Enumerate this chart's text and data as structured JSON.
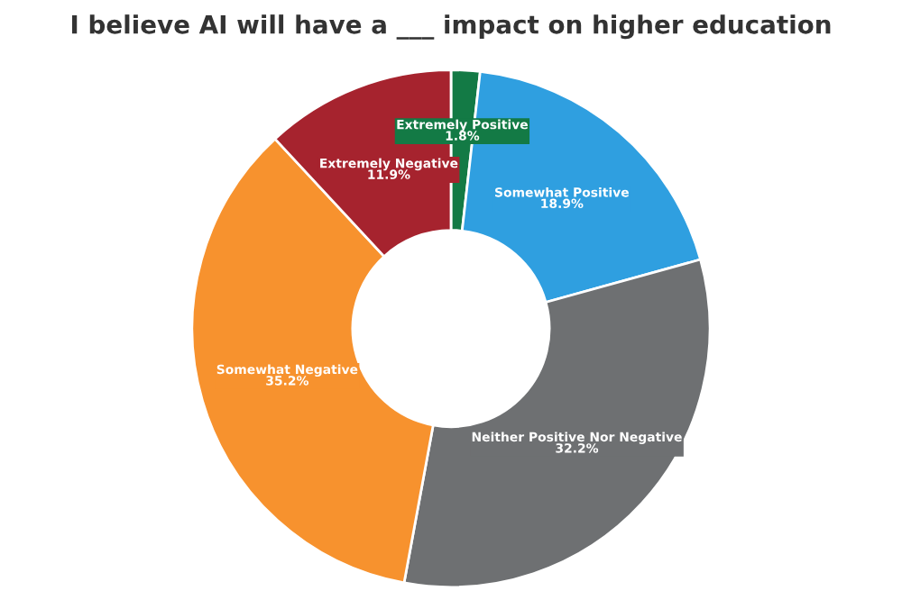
{
  "chart_data": {
    "type": "donut",
    "title": "I believe AI will have a ___ impact on higher education",
    "categories": [
      "Extremely Positive",
      "Somewhat Positive",
      "Neither Positive Nor Negative",
      "Somewhat Negative",
      "Extremely Negative"
    ],
    "values": [
      1.8,
      18.9,
      32.2,
      35.2,
      11.9
    ],
    "value_labels": [
      "1.8%",
      "18.9%",
      "32.2%",
      "35.2%",
      "11.9%"
    ],
    "colors": [
      "#137a45",
      "#2f9fe0",
      "#6e7072",
      "#f7922e",
      "#a6232e"
    ],
    "legend": false
  }
}
